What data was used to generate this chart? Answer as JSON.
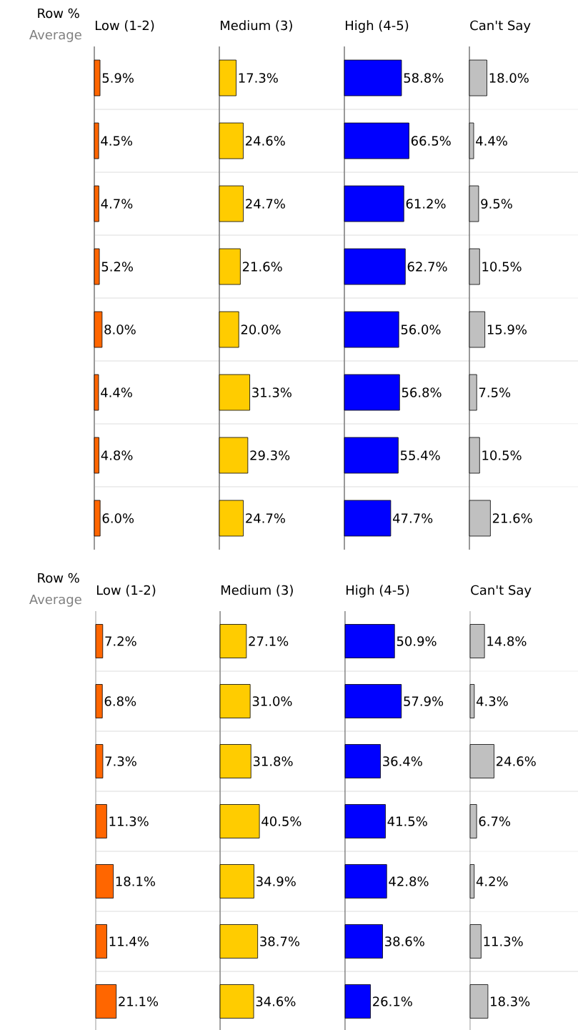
{
  "chart_data": [
    {
      "type": "bar",
      "orientation": "horizontal",
      "title": "Low (1-2)",
      "annotations": [
        "Row %",
        "Average"
      ],
      "categories": [
        null,
        null,
        null,
        null,
        null,
        null,
        null,
        null
      ],
      "grid": "y",
      "color": "#ff6600",
      "values": [
        5.9,
        4.5,
        4.7,
        5.2,
        8.0,
        4.4,
        4.8,
        6.0
      ],
      "value_labels": [
        "5.9%",
        "4.5%",
        "4.7%",
        "5.2%",
        "8.0%",
        "4.4%",
        "4.8%",
        "6.0%"
      ]
    },
    {
      "type": "bar",
      "orientation": "horizontal",
      "title": "Medium (3)",
      "categories": [
        null,
        null,
        null,
        null,
        null,
        null,
        null,
        null
      ],
      "grid": "y",
      "color": "#ffcc00",
      "values": [
        17.3,
        24.6,
        24.7,
        21.6,
        20.0,
        31.3,
        29.3,
        24.7
      ],
      "value_labels": [
        "17.3%",
        "24.6%",
        "24.7%",
        "21.6%",
        "20.0%",
        "31.3%",
        "29.3%",
        "24.7%"
      ]
    },
    {
      "type": "bar",
      "orientation": "horizontal",
      "title": "High (4-5)",
      "categories": [
        null,
        null,
        null,
        null,
        null,
        null,
        null,
        null
      ],
      "grid": "y",
      "color": "#0000ff",
      "values": [
        58.8,
        66.5,
        61.2,
        62.7,
        56.0,
        56.8,
        55.4,
        47.7
      ],
      "value_labels": [
        "58.8%",
        "66.5%",
        "61.2%",
        "62.7%",
        "56.0%",
        "56.8%",
        "55.4%",
        "47.7%"
      ]
    },
    {
      "type": "bar",
      "orientation": "horizontal",
      "title": "Can't Say",
      "categories": [
        null,
        null,
        null,
        null,
        null,
        null,
        null,
        null
      ],
      "grid": "y",
      "color": "#c0c0c0",
      "values": [
        18.0,
        4.4,
        9.5,
        10.5,
        15.9,
        7.5,
        10.5,
        21.6
      ],
      "value_labels": [
        "18.0%",
        "4.4%",
        "9.5%",
        "10.5%",
        "15.9%",
        "7.5%",
        "10.5%",
        "21.6%"
      ]
    },
    {
      "type": "bar",
      "orientation": "horizontal",
      "title": "Low (1-2)",
      "annotations": [
        "Row %",
        "Average"
      ],
      "categories": [
        null,
        null,
        null,
        null,
        null,
        null,
        null
      ],
      "grid": "y",
      "color": "#ff6600",
      "values": [
        7.2,
        6.8,
        7.3,
        11.3,
        18.1,
        11.4,
        21.1
      ],
      "value_labels": [
        "7.2%",
        "6.8%",
        "7.3%",
        "11.3%",
        "18.1%",
        "11.4%",
        "21.1%"
      ]
    },
    {
      "type": "bar",
      "orientation": "horizontal",
      "title": "Medium (3)",
      "categories": [
        null,
        null,
        null,
        null,
        null,
        null,
        null
      ],
      "grid": "y",
      "color": "#ffcc00",
      "values": [
        27.1,
        31.0,
        31.8,
        40.5,
        34.9,
        38.7,
        34.6
      ],
      "value_labels": [
        "27.1%",
        "31.0%",
        "31.8%",
        "40.5%",
        "34.9%",
        "38.7%",
        "34.6%"
      ]
    },
    {
      "type": "bar",
      "orientation": "horizontal",
      "title": "High (4-5)",
      "categories": [
        null,
        null,
        null,
        null,
        null,
        null,
        null
      ],
      "grid": "y",
      "color": "#0000ff",
      "values": [
        50.9,
        57.9,
        36.4,
        41.5,
        42.8,
        38.6,
        26.1
      ],
      "value_labels": [
        "50.9%",
        "57.9%",
        "36.4%",
        "41.5%",
        "42.8%",
        "38.6%",
        "26.1%"
      ]
    },
    {
      "type": "bar",
      "orientation": "horizontal",
      "title": "Can't Say",
      "categories": [
        null,
        null,
        null,
        null,
        null,
        null,
        null
      ],
      "grid": "y",
      "color": "#c0c0c0",
      "values": [
        14.8,
        4.3,
        24.6,
        6.7,
        4.2,
        11.3,
        18.3
      ],
      "value_labels": [
        "14.8%",
        "4.3%",
        "24.6%",
        "6.7%",
        "4.2%",
        "11.3%",
        "18.3%"
      ]
    }
  ]
}
